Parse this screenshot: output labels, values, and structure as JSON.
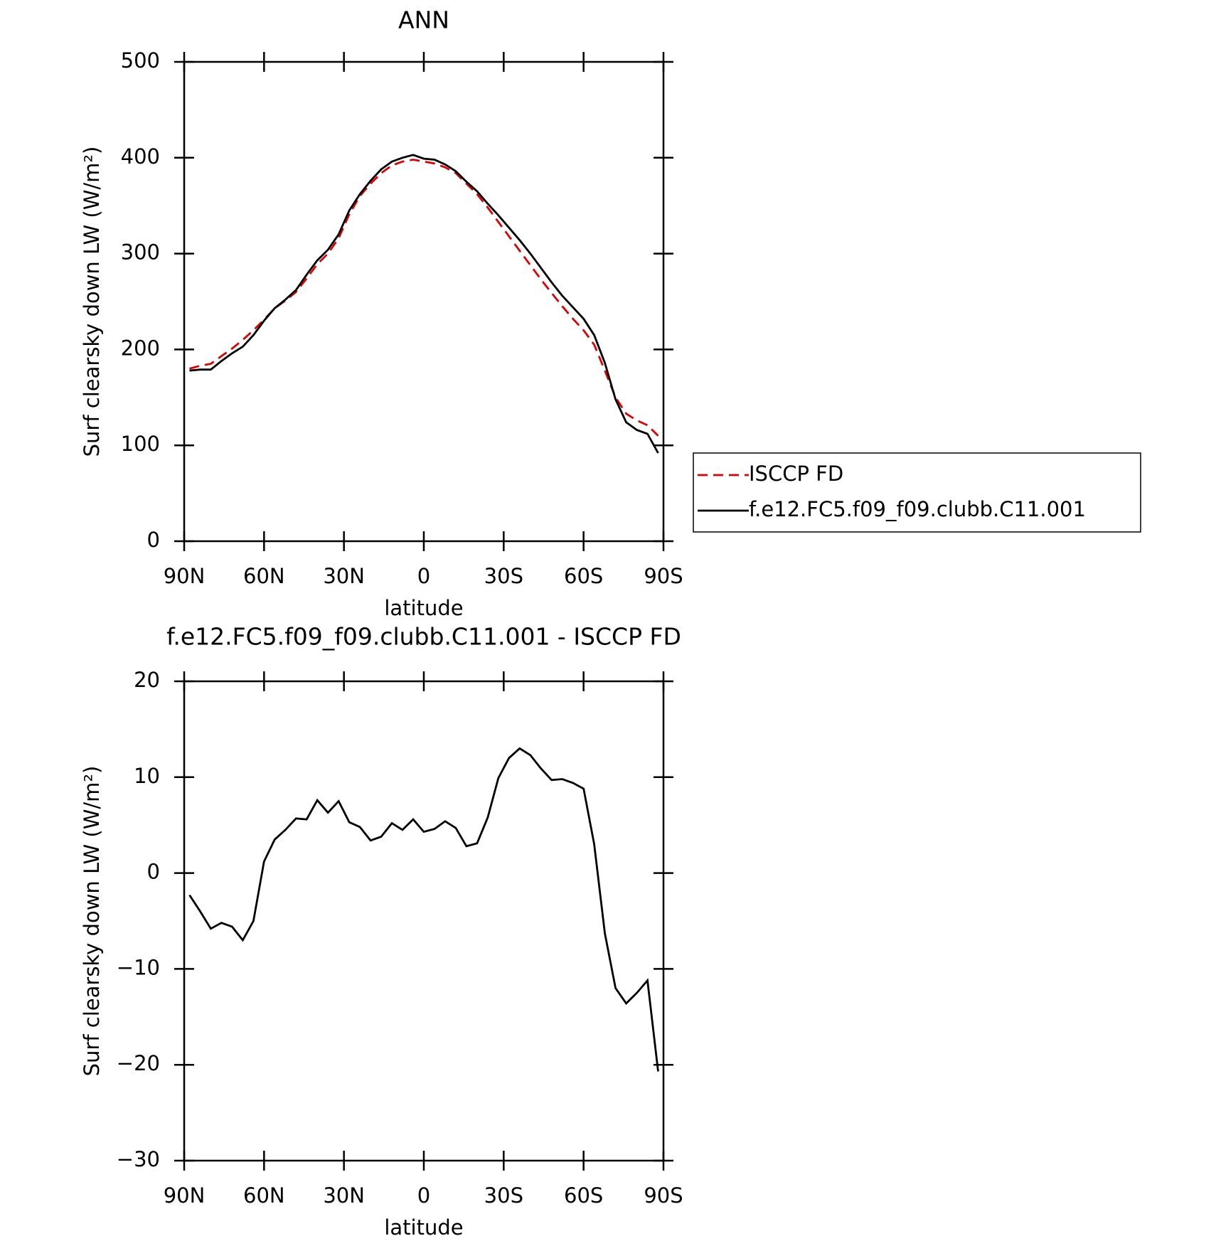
{
  "chart_data": [
    {
      "type": "line",
      "title": "ANN",
      "xlabel": "latitude",
      "ylabel": "Surf clearsky down LW (W/m²)",
      "x": [
        88,
        84,
        80,
        76,
        72,
        68,
        64,
        60,
        56,
        52,
        48,
        44,
        40,
        36,
        32,
        28,
        24,
        20,
        16,
        12,
        8,
        4,
        0,
        -4,
        -8,
        -12,
        -16,
        -20,
        -24,
        -28,
        -32,
        -36,
        -40,
        -44,
        -48,
        -52,
        -56,
        -60,
        -64,
        -68,
        -72,
        -76,
        -80,
        -84,
        -88
      ],
      "series": [
        {
          "name": "ISCCP FD",
          "color": "#e00000",
          "dash": true,
          "values": [
            180,
            183,
            185,
            193,
            201,
            210,
            220,
            231,
            243,
            251,
            260,
            274,
            289,
            300,
            316,
            341,
            360,
            373,
            384,
            392,
            396,
            398,
            396,
            394,
            390,
            384,
            373,
            362,
            348,
            333,
            318,
            303,
            288,
            273,
            259,
            245,
            232,
            220,
            205,
            178,
            150,
            133,
            126,
            121,
            110
          ]
        },
        {
          "name": "f.e12.FC5.f09_f09.clubb.C11.001",
          "color": "#000000",
          "dash": false,
          "values": [
            178,
            179,
            179,
            188,
            196,
            203,
            215,
            230,
            243,
            252,
            262,
            278,
            293,
            304,
            320,
            345,
            362,
            376,
            388,
            396,
            400,
            403,
            399,
            398,
            393,
            386,
            375,
            365,
            352,
            340,
            327,
            314,
            300,
            285,
            270,
            256,
            244,
            232,
            215,
            186,
            148,
            124,
            116,
            112,
            92
          ]
        }
      ],
      "xlim": [
        90,
        -90
      ],
      "xticks": [
        {
          "value": 90,
          "label": "90N"
        },
        {
          "value": 60,
          "label": "60N"
        },
        {
          "value": 30,
          "label": "30N"
        },
        0,
        {
          "value": -30,
          "label": "30S"
        },
        {
          "value": -60,
          "label": "60S"
        },
        {
          "value": -90,
          "label": "90S"
        }
      ],
      "ylim": [
        0,
        500
      ],
      "yticks": [
        0,
        100,
        200,
        300,
        400,
        500
      ],
      "legend": "right"
    },
    {
      "type": "line",
      "title": "f.e12.FC5.f09_f09.clubb.C11.001 - ISCCP FD",
      "xlabel": "latitude",
      "ylabel": "Surf clearsky down LW (W/m²)",
      "x": [
        88,
        84,
        80,
        76,
        72,
        68,
        64,
        60,
        56,
        52,
        48,
        44,
        40,
        36,
        32,
        28,
        24,
        20,
        16,
        12,
        8,
        4,
        0,
        -4,
        -8,
        -12,
        -16,
        -20,
        -24,
        -28,
        -32,
        -36,
        -40,
        -44,
        -48,
        -52,
        -56,
        -60,
        -64,
        -68,
        -72,
        -76,
        -80,
        -84,
        -88
      ],
      "values": [
        -2.3,
        -4,
        -5.8,
        -5.2,
        -5.6,
        -7,
        -5,
        1.2,
        3.5,
        4.5,
        5.7,
        5.6,
        7.6,
        6.3,
        7.5,
        5.3,
        4.8,
        3.4,
        3.8,
        5.2,
        4.5,
        5.6,
        4.3,
        4.6,
        5.4,
        4.7,
        2.8,
        3.1,
        5.8,
        9.9,
        12,
        13,
        12.3,
        10.9,
        9.7,
        9.8,
        9.4,
        8.8,
        3,
        -6.3,
        -12,
        -13.6,
        -12.5,
        -11.2,
        -20.7
      ],
      "color": "#000000",
      "xlim": [
        90,
        -90
      ],
      "xticks": [
        {
          "value": 90,
          "label": "90N"
        },
        {
          "value": 60,
          "label": "60N"
        },
        {
          "value": 30,
          "label": "30N"
        },
        0,
        {
          "value": -30,
          "label": "30S"
        },
        {
          "value": -60,
          "label": "60S"
        },
        {
          "value": -90,
          "label": "90S"
        }
      ],
      "ylim": [
        -30,
        20
      ],
      "yticks": [
        {
          "value": -30,
          "label": "−30"
        },
        {
          "value": -20,
          "label": "−20"
        },
        {
          "value": -10,
          "label": "−10"
        },
        0,
        10,
        20
      ]
    }
  ]
}
